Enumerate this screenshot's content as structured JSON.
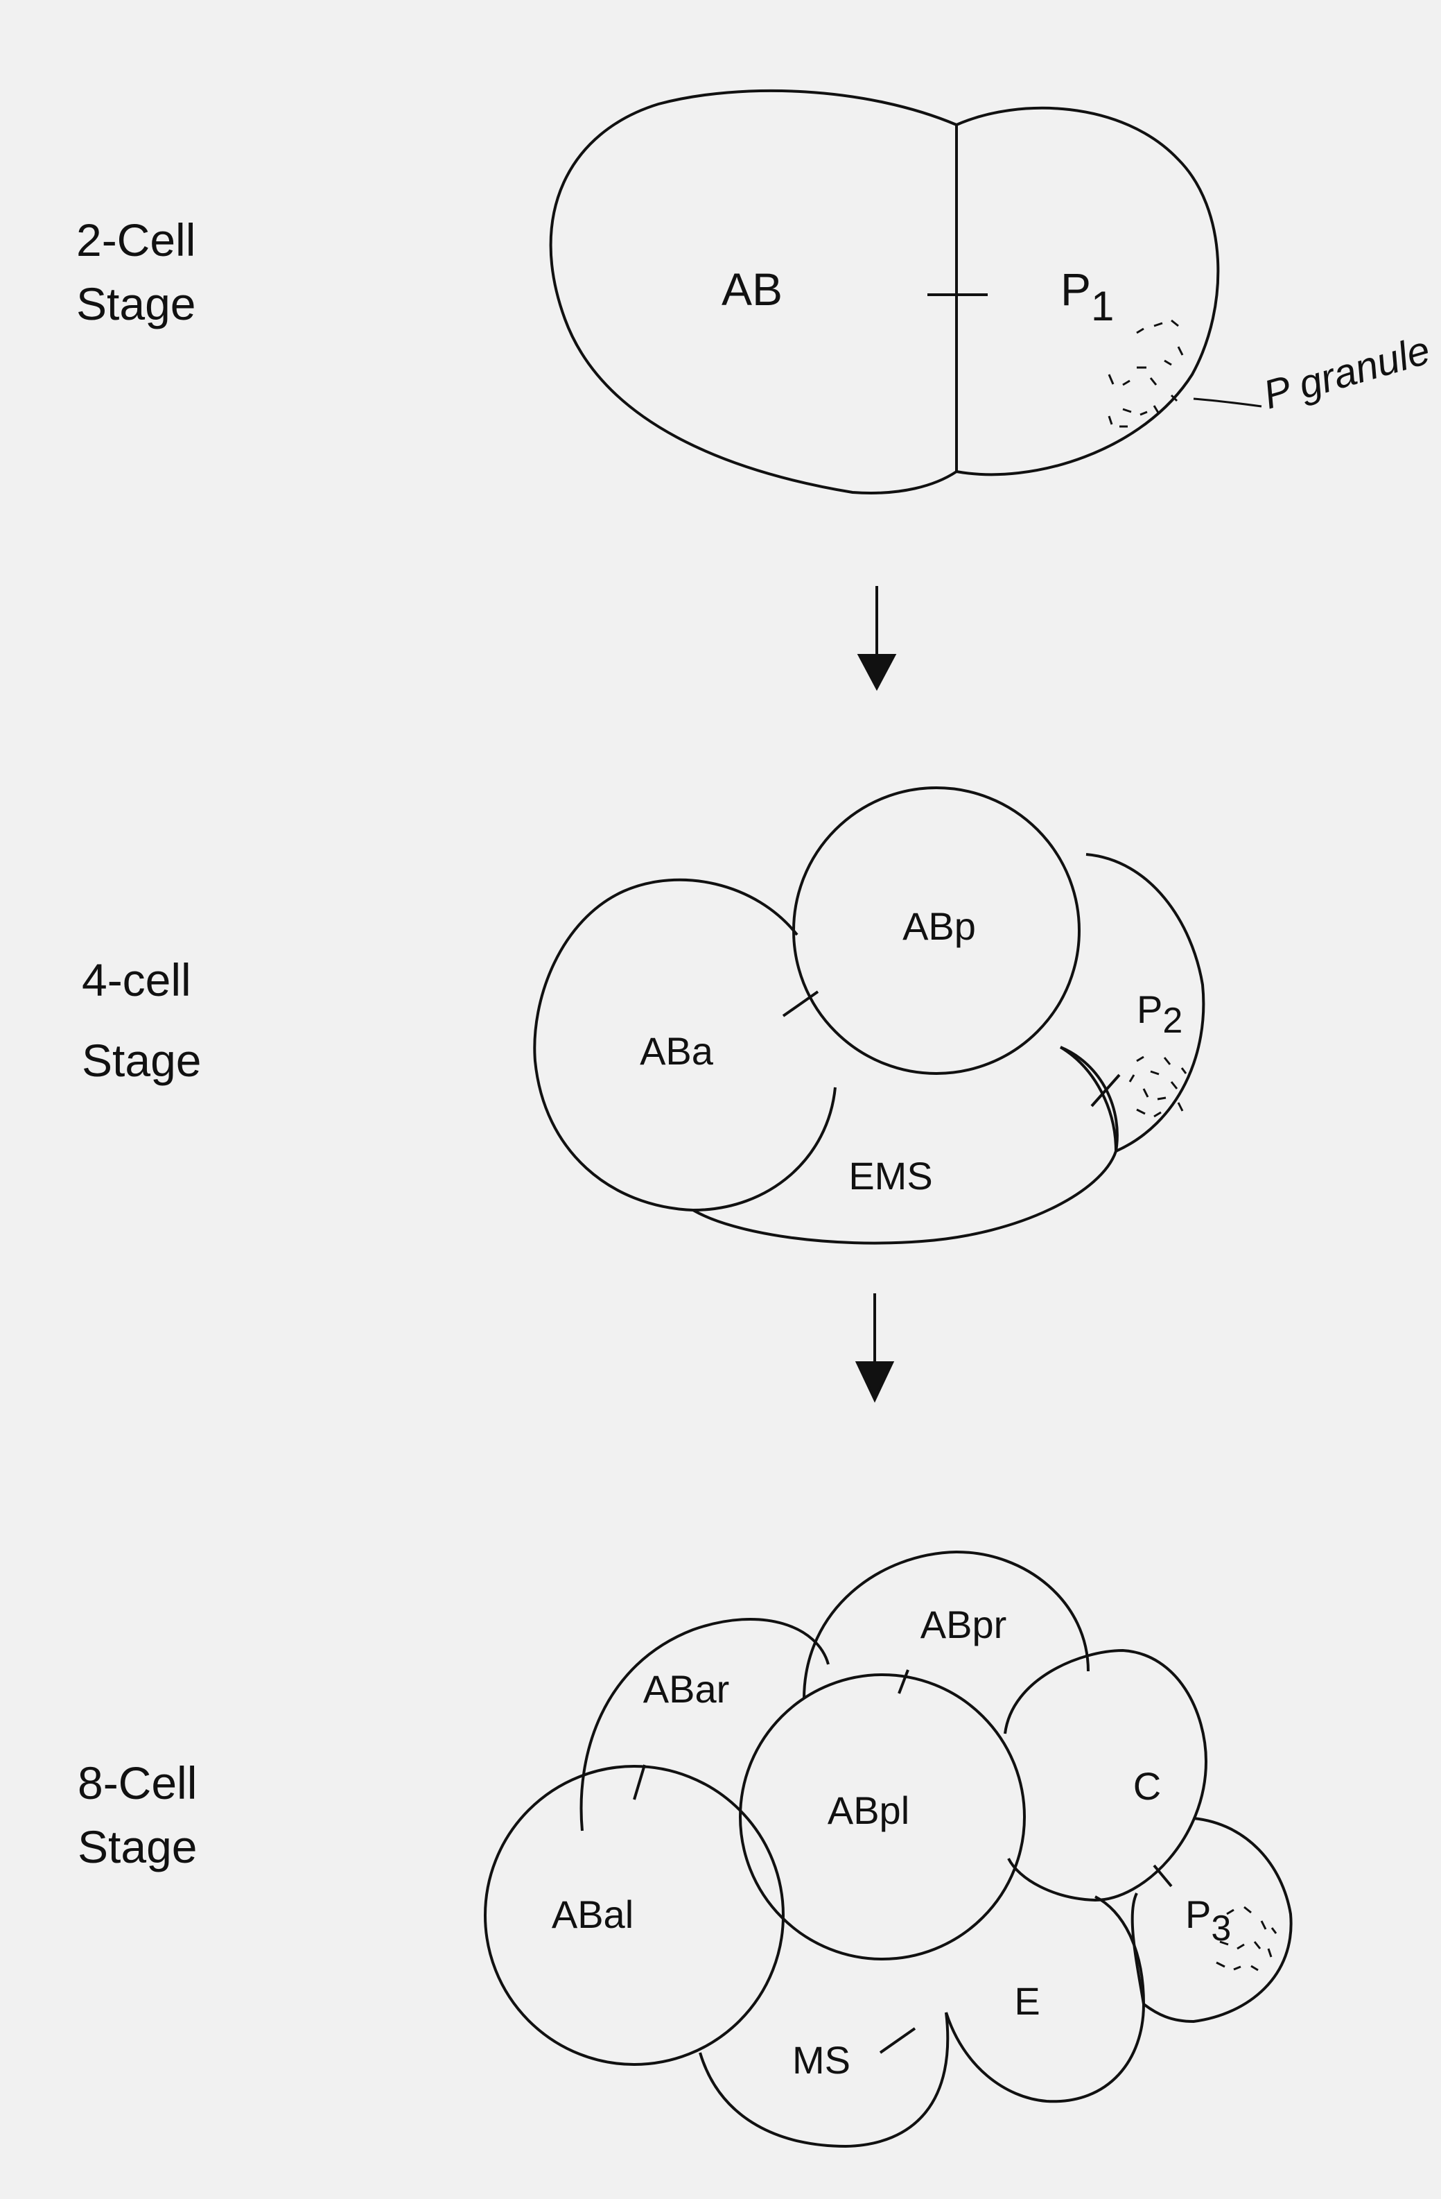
{
  "stages": [
    {
      "line1": "2-Cell",
      "line2": "Stage"
    },
    {
      "line1": "4-cell",
      "line2": "Stage"
    },
    {
      "line1": "8-Cell",
      "line2": "Stage"
    }
  ],
  "two_cell": {
    "ab": "AB",
    "p1_base": "P",
    "p1_sub": "1",
    "annotation": "P granule"
  },
  "four_cell": {
    "aba": "ABa",
    "abp": "ABp",
    "ems": "EMS",
    "p2_base": "P",
    "p2_sub": "2"
  },
  "eight_cell": {
    "abar": "ABar",
    "abpr": "ABpr",
    "abpl": "ABpl",
    "abal": "ABal",
    "c": "C",
    "e": "E",
    "ms": "MS",
    "p3_base": "P",
    "p3_sub": "3"
  }
}
